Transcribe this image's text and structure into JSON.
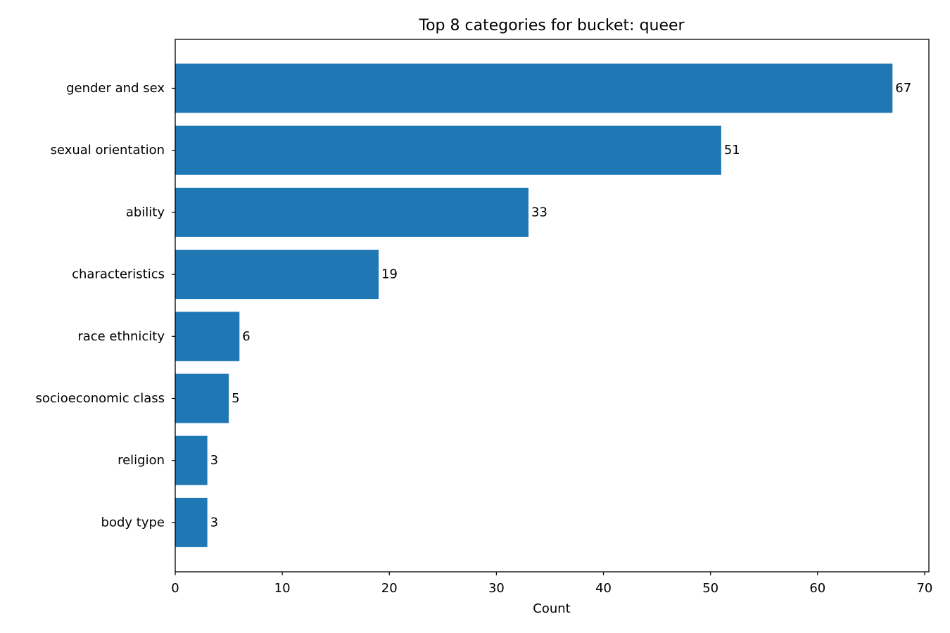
{
  "chart_data": {
    "type": "bar",
    "orientation": "horizontal",
    "title": "Top 8 categories for bucket: queer",
    "xlabel": "Count",
    "ylabel": "",
    "categories": [
      "gender and sex",
      "sexual orientation",
      "ability",
      "characteristics",
      "race ethnicity",
      "socioeconomic class",
      "religion",
      "body type"
    ],
    "values": [
      67,
      51,
      33,
      19,
      6,
      5,
      3,
      3
    ],
    "data_labels": [
      "67",
      "51",
      "33",
      "19",
      "6",
      "5",
      "3",
      "3"
    ],
    "xlim": [
      0,
      70.4
    ],
    "x_ticks": [
      0,
      10,
      20,
      30,
      40,
      50,
      60,
      70
    ],
    "x_tick_labels": [
      "0",
      "10",
      "20",
      "30",
      "40",
      "50",
      "60",
      "70"
    ],
    "bar_color": "#1f77b4",
    "grid": false,
    "legend": false
  }
}
